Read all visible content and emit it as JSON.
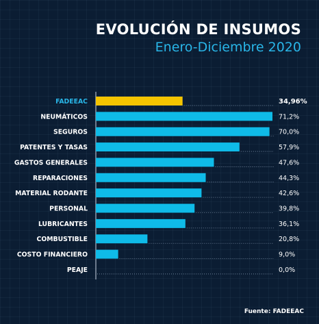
{
  "header": {
    "title": "EVOLUCIÓN DE INSUMOS",
    "subtitle": "Enero-Diciembre 2020"
  },
  "footer": {
    "source": "Fuente: FADEEAC"
  },
  "colors": {
    "background": "#0b1d33",
    "bar": "#0fbbe8",
    "highlight_bar": "#f5c400",
    "highlight_label": "#29b6e8",
    "text": "#ffffff"
  },
  "chart_data": {
    "type": "bar",
    "orientation": "horizontal",
    "categories": [
      "FADEEAC",
      "NEUMÁTICOS",
      "SEGUROS",
      "PATENTES Y TASAS",
      "GASTOS GENERALES",
      "REPARACIONES",
      "MATERIAL RODANTE",
      "PERSONAL",
      "LUBRICANTES",
      "COMBUSTIBLE",
      "COSTO FINANCIERO",
      "PEAJE"
    ],
    "values": [
      34.96,
      71.2,
      70.0,
      57.9,
      47.6,
      44.3,
      42.6,
      39.8,
      36.1,
      20.8,
      9.0,
      0.0
    ],
    "value_labels": [
      "34,96%",
      "71,2%",
      "70,0%",
      "57,9%",
      "47,6%",
      "44,3%",
      "42,6%",
      "39,8%",
      "36,1%",
      "20,8%",
      "9,0%",
      "0,0%"
    ],
    "highlight": "FADEEAC",
    "xlim": [
      0,
      71.2
    ],
    "grid": false,
    "legend": "none"
  }
}
